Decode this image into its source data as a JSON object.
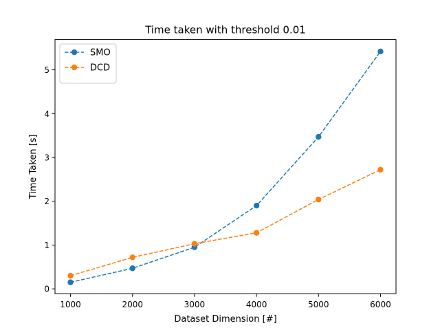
{
  "chart_data": {
    "type": "line",
    "title": "Time taken with threshold 0.01",
    "xlabel": "Dataset Dimension [#]",
    "ylabel": "Time Taken [s]",
    "x": [
      1000,
      2000,
      3000,
      4000,
      5000,
      6000
    ],
    "series": [
      {
        "name": "SMO",
        "color": "#1f77b4",
        "values": [
          0.15,
          0.47,
          0.95,
          1.9,
          3.47,
          5.42
        ]
      },
      {
        "name": "DCD",
        "color": "#ff7f0e",
        "values": [
          0.3,
          0.72,
          1.03,
          1.28,
          2.04,
          2.72
        ]
      }
    ],
    "xlim": [
      750,
      6250
    ],
    "ylim": [
      -0.11,
      5.69
    ],
    "xticks": [
      1000,
      2000,
      3000,
      4000,
      5000,
      6000
    ],
    "yticks": [
      0,
      1,
      2,
      3,
      4,
      5
    ],
    "line_style": "dashed",
    "marker": "circle",
    "grid": false,
    "legend_position": "top-left"
  }
}
